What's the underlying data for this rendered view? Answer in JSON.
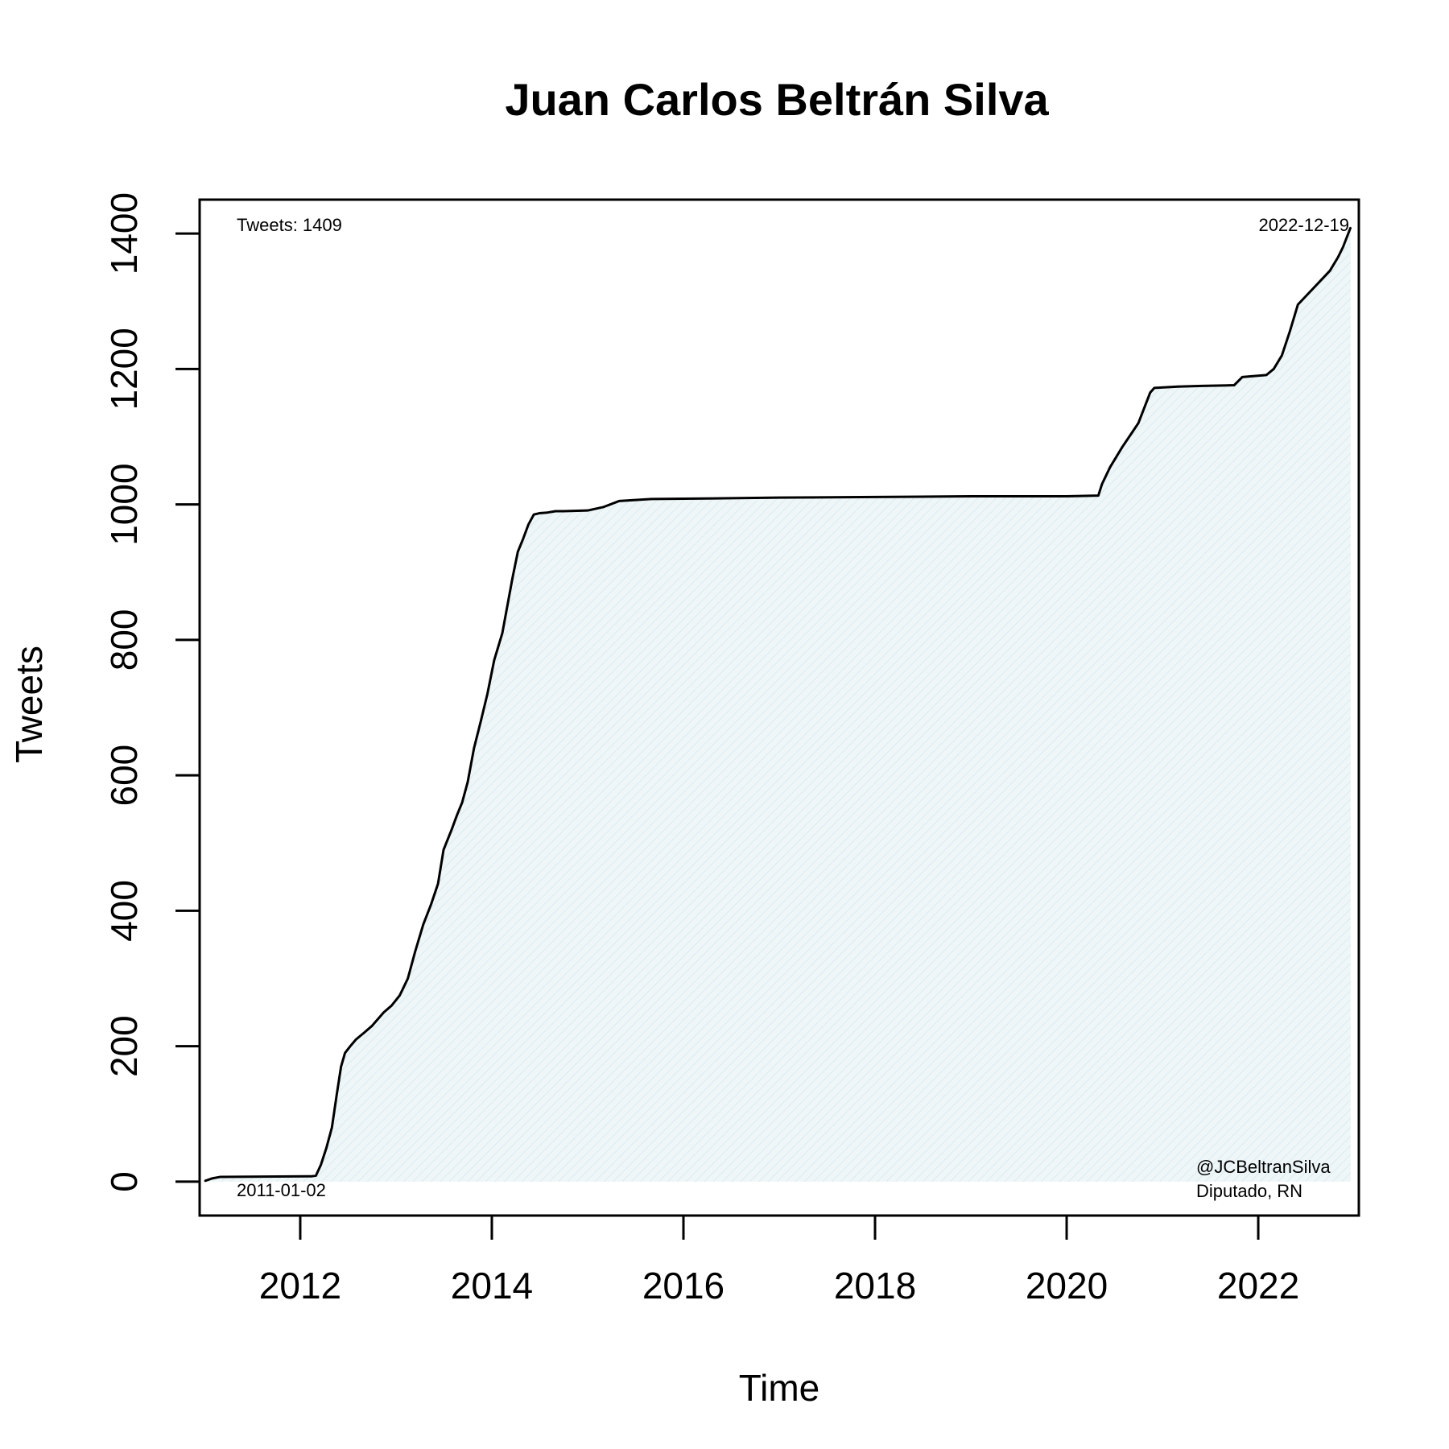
{
  "chart_data": {
    "type": "line",
    "title": "Juan Carlos Beltrán Silva",
    "xlabel": "Time",
    "ylabel": "Tweets",
    "xlim": [
      2010.95,
      2023.05
    ],
    "ylim": [
      -50,
      1450
    ],
    "x_ticks": [
      2012,
      2014,
      2016,
      2018,
      2020,
      2022
    ],
    "y_ticks": [
      0,
      200,
      400,
      600,
      800,
      1000,
      1200,
      1400
    ],
    "fill_under_line": true,
    "colors": {
      "line": "#000000",
      "fill": "#eef6f8",
      "fill_hatch": "#dcebef"
    },
    "annotations": {
      "top_left": "Tweets: 1409",
      "top_right": "2022-12-19",
      "bottom_left": "2011-01-02",
      "bottom_right_line1": "@JCBeltranSilva",
      "bottom_right_line2": "Diputado, RN"
    },
    "series": [
      {
        "x": [
          "2011-01-02",
          "2011-02-01",
          "2011-03-01",
          "2012-02-15",
          "2012-03-01",
          "2012-03-20",
          "2012-04-10",
          "2012-05-01",
          "2012-05-20",
          "2012-06-05",
          "2012-06-20",
          "2012-07-10",
          "2012-08-01",
          "2012-09-01",
          "2012-10-01",
          "2012-11-15",
          "2012-12-15",
          "2013-01-15",
          "2013-02-15",
          "2013-03-15",
          "2013-04-15",
          "2013-05-15",
          "2013-06-10",
          "2013-07-01",
          "2013-08-01",
          "2013-08-20",
          "2013-09-10",
          "2013-10-01",
          "2013-10-25",
          "2013-11-20",
          "2013-12-15",
          "2014-01-10",
          "2014-02-10",
          "2014-03-01",
          "2014-03-20",
          "2014-04-10",
          "2014-05-01",
          "2014-05-20",
          "2014-06-10",
          "2014-07-01",
          "2014-08-01",
          "2014-09-01",
          "2014-10-01",
          "2015-01-01",
          "2015-03-01",
          "2015-05-01",
          "2015-09-01",
          "2016-06-01",
          "2017-01-01",
          "2018-01-01",
          "2019-01-01",
          "2020-01-01",
          "2020-05-01",
          "2020-05-15",
          "2020-06-15",
          "2020-08-01",
          "2020-10-01",
          "2020-11-15",
          "2020-12-01",
          "2021-03-01",
          "2021-06-01",
          "2021-10-01",
          "2021-11-01",
          "2022-02-01",
          "2022-03-01",
          "2022-04-01",
          "2022-05-01",
          "2022-06-01",
          "2022-08-01",
          "2022-10-01",
          "2022-11-01",
          "2022-11-20",
          "2022-12-19"
        ],
        "y": [
          1,
          5,
          7,
          8,
          9,
          25,
          50,
          80,
          130,
          170,
          190,
          200,
          210,
          220,
          230,
          250,
          260,
          275,
          300,
          340,
          380,
          410,
          440,
          490,
          520,
          540,
          560,
          590,
          640,
          680,
          720,
          770,
          810,
          850,
          890,
          930,
          950,
          970,
          985,
          987,
          988,
          990,
          990,
          991,
          996,
          1005,
          1008,
          1009,
          1010,
          1011,
          1012,
          1012,
          1013,
          1030,
          1055,
          1085,
          1120,
          1165,
          1172,
          1174,
          1175,
          1176,
          1188,
          1191,
          1200,
          1220,
          1255,
          1295,
          1320,
          1345,
          1365,
          1380,
          1409
        ]
      }
    ]
  }
}
